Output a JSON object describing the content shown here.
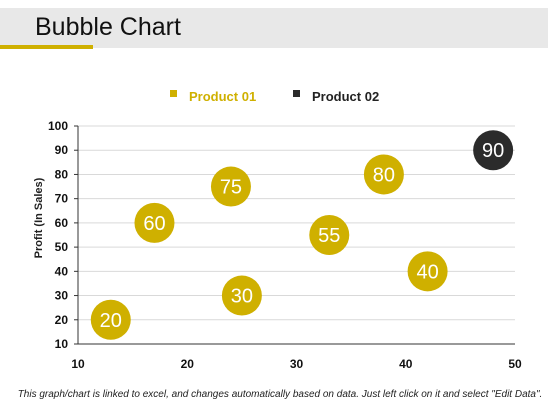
{
  "header": {
    "title": "Bubble Chart",
    "accent_color": "#cfb000"
  },
  "footer": {
    "note": "This graph/chart is linked to excel, and changes automatically based on data. Just left click on it and select \"Edit Data\"."
  },
  "chart_data": {
    "type": "scatter",
    "variant": "bubble",
    "title": "",
    "xlabel": "",
    "ylabel": "Profit  (In Sales)",
    "xlim": [
      10,
      50
    ],
    "ylim": [
      10,
      100
    ],
    "xticks": [
      10,
      20,
      30,
      40,
      50
    ],
    "yticks": [
      10,
      20,
      30,
      40,
      50,
      60,
      70,
      80,
      90,
      100
    ],
    "grid": true,
    "legend_position": "top-center",
    "series": [
      {
        "name": "Product 01",
        "color": "#cfb000",
        "points": [
          {
            "x": 13,
            "y": 20,
            "label": "20"
          },
          {
            "x": 17,
            "y": 60,
            "label": "60"
          },
          {
            "x": 24,
            "y": 75,
            "label": "75"
          },
          {
            "x": 25,
            "y": 30,
            "label": "30"
          },
          {
            "x": 33,
            "y": 55,
            "label": "55"
          },
          {
            "x": 38,
            "y": 80,
            "label": "80"
          },
          {
            "x": 42,
            "y": 40,
            "label": "40"
          }
        ]
      },
      {
        "name": "Product 02",
        "color": "#2b2b2b",
        "points": [
          {
            "x": 48,
            "y": 90,
            "label": "90"
          }
        ]
      }
    ]
  }
}
